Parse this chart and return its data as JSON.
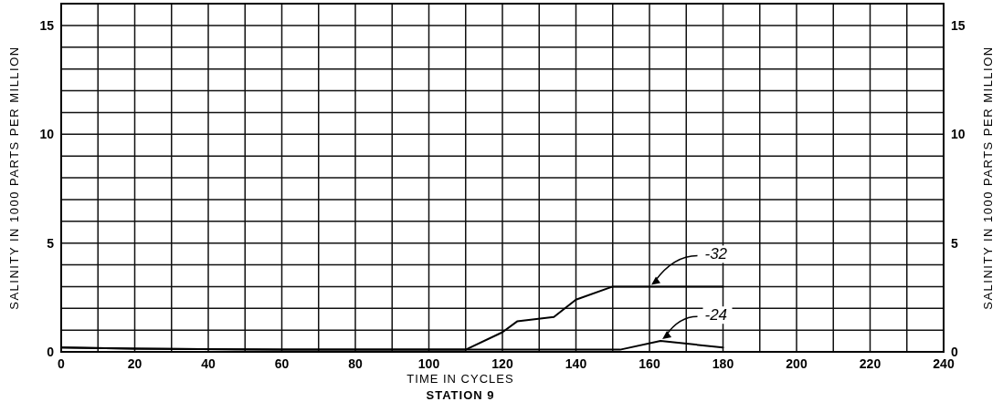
{
  "chart_data": {
    "type": "line",
    "title": "STATION 9",
    "xlabel": "TIME IN CYCLES",
    "ylabel": "SALINITY  IN 1000 PARTS PER MILLION",
    "y2label": "SALINITY  IN 1000 PARTS PER MILLION",
    "xlim": [
      0,
      240
    ],
    "ylim": [
      0,
      16
    ],
    "y2lim": [
      0,
      16
    ],
    "xticks": [
      0,
      {
        "value": 10,
        "label": null
      },
      20,
      {
        "value": 30,
        "label": null
      },
      40,
      {
        "value": 50,
        "label": null
      },
      60,
      {
        "value": 70,
        "label": null
      },
      80,
      {
        "value": 90,
        "label": null
      },
      100,
      {
        "value": 110,
        "label": null
      },
      120,
      {
        "value": 130,
        "label": null
      },
      140,
      {
        "value": 150,
        "label": null
      },
      160,
      {
        "value": 170,
        "label": null
      },
      180,
      {
        "value": 190,
        "label": null
      },
      200,
      {
        "value": 210,
        "label": null
      },
      220,
      {
        "value": 230,
        "label": null
      },
      240
    ],
    "yticks": [
      0,
      {
        "value": 1,
        "label": null
      },
      {
        "value": 2,
        "label": null
      },
      {
        "value": 3,
        "label": null
      },
      {
        "value": 4,
        "label": null
      },
      5,
      {
        "value": 6,
        "label": null
      },
      {
        "value": 7,
        "label": null
      },
      {
        "value": 8,
        "label": null
      },
      {
        "value": 9,
        "label": null
      },
      10,
      {
        "value": 11,
        "label": null
      },
      {
        "value": 12,
        "label": null
      },
      {
        "value": 13,
        "label": null
      },
      {
        "value": 14,
        "label": null
      },
      15,
      {
        "value": 16,
        "label": null
      }
    ],
    "y2ticks": [
      0,
      5,
      10,
      15
    ],
    "grid": true,
    "line_style": "solid",
    "series": [
      {
        "name": "-32",
        "color": "#000000",
        "x": [
          0,
          20,
          60,
          100,
          110,
          120,
          124,
          134,
          140,
          150,
          160,
          180
        ],
        "values": [
          0.2,
          0.15,
          0.1,
          0.1,
          0.1,
          0.9,
          1.4,
          1.6,
          2.4,
          3.0,
          3.0,
          3.0
        ]
      },
      {
        "name": "-24",
        "color": "#000000",
        "x": [
          0,
          20,
          60,
          100,
          110,
          130,
          152,
          163,
          180
        ],
        "values": [
          0.2,
          0.15,
          0.1,
          0.1,
          0.1,
          0.1,
          0.1,
          0.5,
          0.2
        ]
      }
    ]
  }
}
